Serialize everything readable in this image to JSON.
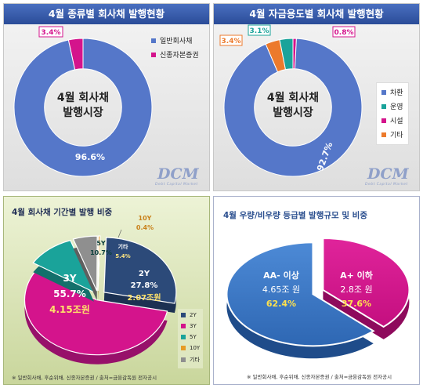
{
  "chart_data": [
    {
      "type": "pie",
      "title": "4월 종류별 회사채 발행현황",
      "center_label": [
        "4월 회사채",
        "발행시장"
      ],
      "slices": [
        {
          "label": "일반회사채",
          "value": 96.6,
          "value_label": "96.6%",
          "color": "#5577c9"
        },
        {
          "label": "신종자본증권",
          "value": 3.4,
          "value_label": "3.4%",
          "color": "#d4148c"
        }
      ]
    },
    {
      "type": "pie",
      "title": "4월 자금용도별 회사채 발행현황",
      "center_label": [
        "4월 회사채",
        "발행시장"
      ],
      "slices": [
        {
          "label": "차환",
          "value": 92.7,
          "value_label": "92.7%",
          "color": "#5577c9"
        },
        {
          "label": "운영",
          "value": 3.1,
          "value_label": "3.1%",
          "color": "#1aa39a"
        },
        {
          "label": "시설",
          "value": 0.8,
          "value_label": "0.8%",
          "color": "#d4148c"
        },
        {
          "label": "기타",
          "value": 3.4,
          "value_label": "3.4%",
          "color": "#ec7a2c"
        }
      ]
    },
    {
      "type": "pie",
      "title": "4월 회사채 기간별 발행 비중",
      "slices": [
        {
          "label": "2Y",
          "value": 27.8,
          "value_label": "27.8%",
          "amount": "2.07조원",
          "color": "#2c4a79"
        },
        {
          "label": "3Y",
          "value": 55.7,
          "value_label": "55.7%",
          "amount": "4.15조원",
          "color": "#d4148c"
        },
        {
          "label": "5Y",
          "value": 10.7,
          "value_label": "10.7%",
          "color": "#1aa39a"
        },
        {
          "label": "10Y",
          "value": 0.4,
          "value_label": "0.4%",
          "color": "#e69b26"
        },
        {
          "label": "기타",
          "value": 5.4,
          "value_label": "5.4%",
          "color": "#8f8f8f"
        }
      ],
      "footnote": "※ 일반회사채, 후순위채, 신종자본증권 / 출처=금융감독원 전자공시"
    },
    {
      "type": "pie",
      "title": "4월 우량/비우량 등급별 발행규모 및 비중",
      "slices": [
        {
          "label": "AA- 이상",
          "value": 62.4,
          "value_label": "62.4%",
          "amount": "4.65조 원",
          "color": "#3b78c9"
        },
        {
          "label": "A+ 이하",
          "value": 37.6,
          "value_label": "37.6%",
          "amount": "2.8조 원",
          "color": "#d4148c"
        }
      ],
      "footnote": "※ 일반회사채, 후순위채, 신종자본증권 / 출처=금융감독원 전자공시"
    }
  ],
  "watermark": {
    "text": "DCM",
    "sub": "Debt Capital Market"
  }
}
